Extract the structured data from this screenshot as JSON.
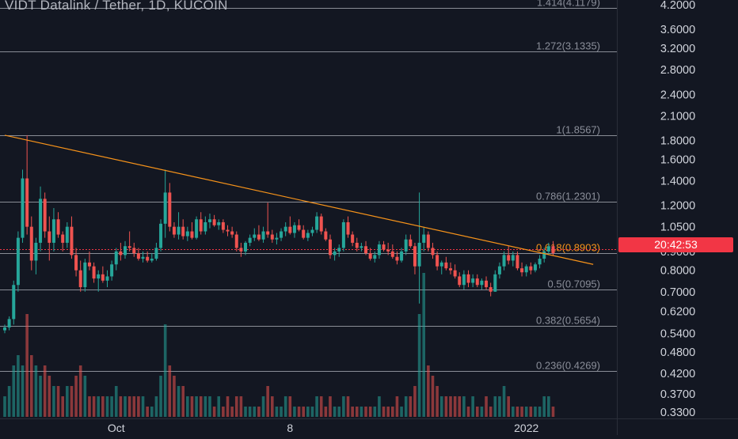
{
  "title": "VIDT Datalink / Tether, 1D, KUCOIN",
  "last_price_label": "20:42:53",
  "colors": {
    "background": "#131722",
    "up": "#26a69a",
    "down": "#ef5350",
    "axis_text": "#d1d4dc",
    "fib_line": "#b2b5be",
    "trendline": "#f7931a",
    "price_tag": "#f23645"
  },
  "chart_data": {
    "type": "candlestick",
    "y_scale": "log",
    "ylim": [
      0.31,
      4.25
    ],
    "grid": false,
    "y_ticks": [
      {
        "value": 4.2,
        "label": "4.2000"
      },
      {
        "value": 3.6,
        "label": "3.6000"
      },
      {
        "value": 3.2,
        "label": "3.2000"
      },
      {
        "value": 2.8,
        "label": "2.8000"
      },
      {
        "value": 2.4,
        "label": "2.4000"
      },
      {
        "value": 2.1,
        "label": "2.1000"
      },
      {
        "value": 1.8,
        "label": "1.8000"
      },
      {
        "value": 1.6,
        "label": "1.6000"
      },
      {
        "value": 1.4,
        "label": "1.4000"
      },
      {
        "value": 1.2,
        "label": "1.2000"
      },
      {
        "value": 1.05,
        "label": "1.0500"
      },
      {
        "value": 0.9,
        "label": "0.9000"
      },
      {
        "value": 0.8,
        "label": "0.8000"
      },
      {
        "value": 0.7,
        "label": "0.7000"
      },
      {
        "value": 0.62,
        "label": "0.6200"
      },
      {
        "value": 0.54,
        "label": "0.5400"
      },
      {
        "value": 0.48,
        "label": "0.4800"
      },
      {
        "value": 0.42,
        "label": "0.4200"
      },
      {
        "value": 0.37,
        "label": "0.3700"
      },
      {
        "value": 0.33,
        "label": "0.3300"
      }
    ],
    "x_ticks": [
      {
        "index": 25,
        "label": "Oct"
      },
      {
        "index": 64,
        "label": "8"
      },
      {
        "index": 117,
        "label": "2022"
      }
    ],
    "fib_levels": [
      {
        "ratio_label": "1.414(4.1179)",
        "value": 4.1179
      },
      {
        "ratio_label": "1.272(3.1335)",
        "value": 3.1335
      },
      {
        "ratio_label": "1(1.8567)",
        "value": 1.8567
      },
      {
        "ratio_label": "0.786(1.2301)",
        "value": 1.2301
      },
      {
        "ratio_label": "0.618(0.8903)",
        "value": 0.8903
      },
      {
        "ratio_label": "0.5(0.7095)",
        "value": 0.7095
      },
      {
        "ratio_label": "0.382(0.5654)",
        "value": 0.5654
      },
      {
        "ratio_label": "0.236(0.4269)",
        "value": 0.4269
      }
    ],
    "trendline": {
      "start": {
        "index": 0,
        "value": 1.86
      },
      "end": {
        "index": 132,
        "value": 0.83
      }
    },
    "last_price": 0.8903,
    "candles": [
      {
        "o": 0.55,
        "h": 0.57,
        "l": 0.54,
        "c": 0.56,
        "v": 0.2
      },
      {
        "o": 0.56,
        "h": 0.6,
        "l": 0.55,
        "c": 0.59,
        "v": 0.3
      },
      {
        "o": 0.59,
        "h": 0.75,
        "l": 0.57,
        "c": 0.73,
        "v": 0.5
      },
      {
        "o": 0.73,
        "h": 1.02,
        "l": 0.7,
        "c": 0.98,
        "v": 0.6
      },
      {
        "o": 0.98,
        "h": 1.5,
        "l": 0.95,
        "c": 1.42,
        "v": 0.5
      },
      {
        "o": 1.42,
        "h": 1.86,
        "l": 1.0,
        "c": 1.05,
        "v": 1.0
      },
      {
        "o": 1.05,
        "h": 1.12,
        "l": 0.8,
        "c": 0.85,
        "v": 0.6
      },
      {
        "o": 0.85,
        "h": 0.98,
        "l": 0.78,
        "c": 0.95,
        "v": 0.5
      },
      {
        "o": 0.95,
        "h": 1.35,
        "l": 0.9,
        "c": 1.25,
        "v": 0.4
      },
      {
        "o": 1.25,
        "h": 1.3,
        "l": 0.98,
        "c": 1.02,
        "v": 0.5
      },
      {
        "o": 1.02,
        "h": 1.12,
        "l": 0.85,
        "c": 0.95,
        "v": 0.4
      },
      {
        "o": 0.95,
        "h": 1.18,
        "l": 0.9,
        "c": 1.1,
        "v": 0.3
      },
      {
        "o": 1.1,
        "h": 1.15,
        "l": 0.98,
        "c": 1.0,
        "v": 0.3
      },
      {
        "o": 1.0,
        "h": 1.02,
        "l": 0.9,
        "c": 0.95,
        "v": 0.2
      },
      {
        "o": 0.95,
        "h": 1.08,
        "l": 0.92,
        "c": 1.05,
        "v": 0.3
      },
      {
        "o": 1.05,
        "h": 1.12,
        "l": 0.86,
        "c": 0.88,
        "v": 0.3
      },
      {
        "o": 0.88,
        "h": 0.92,
        "l": 0.77,
        "c": 0.8,
        "v": 0.4
      },
      {
        "o": 0.8,
        "h": 0.85,
        "l": 0.7,
        "c": 0.72,
        "v": 0.5
      },
      {
        "o": 0.72,
        "h": 0.86,
        "l": 0.7,
        "c": 0.84,
        "v": 0.4
      },
      {
        "o": 0.84,
        "h": 0.9,
        "l": 0.8,
        "c": 0.82,
        "v": 0.2
      },
      {
        "o": 0.82,
        "h": 0.84,
        "l": 0.74,
        "c": 0.76,
        "v": 0.2
      },
      {
        "o": 0.76,
        "h": 0.8,
        "l": 0.7,
        "c": 0.78,
        "v": 0.2
      },
      {
        "o": 0.78,
        "h": 0.82,
        "l": 0.74,
        "c": 0.75,
        "v": 0.2
      },
      {
        "o": 0.75,
        "h": 0.8,
        "l": 0.72,
        "c": 0.77,
        "v": 0.2
      },
      {
        "o": 0.77,
        "h": 0.85,
        "l": 0.75,
        "c": 0.83,
        "v": 0.2
      },
      {
        "o": 0.83,
        "h": 0.92,
        "l": 0.8,
        "c": 0.9,
        "v": 0.3
      },
      {
        "o": 0.9,
        "h": 0.95,
        "l": 0.85,
        "c": 0.88,
        "v": 0.2
      },
      {
        "o": 0.88,
        "h": 0.96,
        "l": 0.86,
        "c": 0.93,
        "v": 0.2
      },
      {
        "o": 0.93,
        "h": 1.02,
        "l": 0.9,
        "c": 0.92,
        "v": 0.2
      },
      {
        "o": 0.92,
        "h": 0.95,
        "l": 0.87,
        "c": 0.89,
        "v": 0.2
      },
      {
        "o": 0.89,
        "h": 0.92,
        "l": 0.85,
        "c": 0.86,
        "v": 0.2
      },
      {
        "o": 0.86,
        "h": 0.9,
        "l": 0.84,
        "c": 0.87,
        "v": 0.2
      },
      {
        "o": 0.87,
        "h": 0.9,
        "l": 0.84,
        "c": 0.85,
        "v": 0.1
      },
      {
        "o": 0.85,
        "h": 0.89,
        "l": 0.84,
        "c": 0.86,
        "v": 0.1
      },
      {
        "o": 0.86,
        "h": 0.95,
        "l": 0.85,
        "c": 0.92,
        "v": 0.2
      },
      {
        "o": 0.92,
        "h": 1.1,
        "l": 0.9,
        "c": 1.07,
        "v": 0.4
      },
      {
        "o": 1.07,
        "h": 1.5,
        "l": 0.98,
        "c": 1.3,
        "v": 0.9
      },
      {
        "o": 1.3,
        "h": 1.38,
        "l": 1.02,
        "c": 1.05,
        "v": 0.5
      },
      {
        "o": 1.05,
        "h": 1.08,
        "l": 0.98,
        "c": 1.0,
        "v": 0.4
      },
      {
        "o": 1.0,
        "h": 1.15,
        "l": 0.97,
        "c": 1.05,
        "v": 0.3
      },
      {
        "o": 1.05,
        "h": 1.1,
        "l": 0.97,
        "c": 0.99,
        "v": 0.3
      },
      {
        "o": 0.99,
        "h": 1.05,
        "l": 0.96,
        "c": 1.02,
        "v": 0.2
      },
      {
        "o": 1.02,
        "h": 1.08,
        "l": 0.97,
        "c": 0.98,
        "v": 0.2
      },
      {
        "o": 0.98,
        "h": 1.12,
        "l": 0.97,
        "c": 1.1,
        "v": 0.2
      },
      {
        "o": 1.1,
        "h": 1.15,
        "l": 1.0,
        "c": 1.02,
        "v": 0.2
      },
      {
        "o": 1.02,
        "h": 1.12,
        "l": 1.0,
        "c": 1.08,
        "v": 0.2
      },
      {
        "o": 1.08,
        "h": 1.14,
        "l": 1.04,
        "c": 1.1,
        "v": 0.2
      },
      {
        "o": 1.1,
        "h": 1.13,
        "l": 1.05,
        "c": 1.06,
        "v": 0.1
      },
      {
        "o": 1.06,
        "h": 1.1,
        "l": 1.03,
        "c": 1.08,
        "v": 0.2
      },
      {
        "o": 1.08,
        "h": 1.1,
        "l": 1.01,
        "c": 1.03,
        "v": 0.1
      },
      {
        "o": 1.03,
        "h": 1.06,
        "l": 0.99,
        "c": 1.02,
        "v": 0.2
      },
      {
        "o": 1.02,
        "h": 1.05,
        "l": 0.98,
        "c": 1.0,
        "v": 0.1
      },
      {
        "o": 1.0,
        "h": 1.02,
        "l": 0.9,
        "c": 0.92,
        "v": 0.2
      },
      {
        "o": 0.92,
        "h": 0.95,
        "l": 0.87,
        "c": 0.9,
        "v": 0.2
      },
      {
        "o": 0.9,
        "h": 0.96,
        "l": 0.88,
        "c": 0.95,
        "v": 0.1
      },
      {
        "o": 0.95,
        "h": 1.0,
        "l": 0.93,
        "c": 0.98,
        "v": 0.1
      },
      {
        "o": 0.98,
        "h": 1.04,
        "l": 0.96,
        "c": 1.0,
        "v": 0.1
      },
      {
        "o": 1.0,
        "h": 1.06,
        "l": 0.96,
        "c": 0.97,
        "v": 0.1
      },
      {
        "o": 0.97,
        "h": 1.05,
        "l": 0.95,
        "c": 1.02,
        "v": 0.2
      },
      {
        "o": 1.02,
        "h": 1.22,
        "l": 0.98,
        "c": 1.0,
        "v": 0.3
      },
      {
        "o": 1.0,
        "h": 1.03,
        "l": 0.95,
        "c": 0.97,
        "v": 0.2
      },
      {
        "o": 0.97,
        "h": 1.01,
        "l": 0.94,
        "c": 0.98,
        "v": 0.1
      },
      {
        "o": 0.98,
        "h": 1.04,
        "l": 0.96,
        "c": 1.02,
        "v": 0.1
      },
      {
        "o": 1.02,
        "h": 1.08,
        "l": 0.99,
        "c": 1.05,
        "v": 0.2
      },
      {
        "o": 1.05,
        "h": 1.12,
        "l": 1.0,
        "c": 1.01,
        "v": 0.2
      },
      {
        "o": 1.01,
        "h": 1.08,
        "l": 0.98,
        "c": 1.06,
        "v": 0.1
      },
      {
        "o": 1.06,
        "h": 1.1,
        "l": 1.02,
        "c": 1.03,
        "v": 0.1
      },
      {
        "o": 1.03,
        "h": 1.06,
        "l": 0.97,
        "c": 0.98,
        "v": 0.1
      },
      {
        "o": 0.98,
        "h": 1.03,
        "l": 0.96,
        "c": 1.01,
        "v": 0.1
      },
      {
        "o": 1.01,
        "h": 1.05,
        "l": 0.99,
        "c": 1.03,
        "v": 0.1
      },
      {
        "o": 1.03,
        "h": 1.15,
        "l": 1.01,
        "c": 1.12,
        "v": 0.2
      },
      {
        "o": 1.12,
        "h": 1.14,
        "l": 1.0,
        "c": 1.02,
        "v": 0.2
      },
      {
        "o": 1.02,
        "h": 1.04,
        "l": 0.96,
        "c": 0.97,
        "v": 0.1
      },
      {
        "o": 0.97,
        "h": 1.0,
        "l": 0.86,
        "c": 0.88,
        "v": 0.2
      },
      {
        "o": 0.88,
        "h": 0.92,
        "l": 0.85,
        "c": 0.9,
        "v": 0.1
      },
      {
        "o": 0.9,
        "h": 0.94,
        "l": 0.87,
        "c": 0.92,
        "v": 0.1
      },
      {
        "o": 0.92,
        "h": 1.1,
        "l": 0.9,
        "c": 1.08,
        "v": 0.2
      },
      {
        "o": 1.08,
        "h": 1.12,
        "l": 0.98,
        "c": 1.0,
        "v": 0.2
      },
      {
        "o": 1.0,
        "h": 1.02,
        "l": 0.93,
        "c": 0.95,
        "v": 0.1
      },
      {
        "o": 0.95,
        "h": 0.98,
        "l": 0.9,
        "c": 0.92,
        "v": 0.1
      },
      {
        "o": 0.92,
        "h": 0.95,
        "l": 0.9,
        "c": 0.93,
        "v": 0.1
      },
      {
        "o": 0.93,
        "h": 0.96,
        "l": 0.88,
        "c": 0.89,
        "v": 0.1
      },
      {
        "o": 0.89,
        "h": 0.92,
        "l": 0.85,
        "c": 0.86,
        "v": 0.1
      },
      {
        "o": 0.86,
        "h": 0.9,
        "l": 0.84,
        "c": 0.88,
        "v": 0.1
      },
      {
        "o": 0.88,
        "h": 0.96,
        "l": 0.86,
        "c": 0.94,
        "v": 0.2
      },
      {
        "o": 0.94,
        "h": 0.96,
        "l": 0.9,
        "c": 0.91,
        "v": 0.1
      },
      {
        "o": 0.91,
        "h": 0.95,
        "l": 0.88,
        "c": 0.9,
        "v": 0.1
      },
      {
        "o": 0.9,
        "h": 0.94,
        "l": 0.86,
        "c": 0.87,
        "v": 0.1
      },
      {
        "o": 0.87,
        "h": 0.9,
        "l": 0.83,
        "c": 0.85,
        "v": 0.2
      },
      {
        "o": 0.85,
        "h": 0.92,
        "l": 0.84,
        "c": 0.9,
        "v": 0.1
      },
      {
        "o": 0.9,
        "h": 1.0,
        "l": 0.88,
        "c": 0.97,
        "v": 0.2
      },
      {
        "o": 0.97,
        "h": 1.0,
        "l": 0.92,
        "c": 0.93,
        "v": 0.2
      },
      {
        "o": 0.93,
        "h": 0.95,
        "l": 0.78,
        "c": 0.82,
        "v": 0.3
      },
      {
        "o": 0.82,
        "h": 1.3,
        "l": 0.65,
        "c": 0.95,
        "v": 1.0
      },
      {
        "o": 0.95,
        "h": 1.05,
        "l": 0.9,
        "c": 1.0,
        "v": 1.4
      },
      {
        "o": 1.0,
        "h": 1.02,
        "l": 0.9,
        "c": 0.92,
        "v": 0.5
      },
      {
        "o": 0.92,
        "h": 0.95,
        "l": 0.86,
        "c": 0.88,
        "v": 0.4
      },
      {
        "o": 0.88,
        "h": 0.9,
        "l": 0.8,
        "c": 0.82,
        "v": 0.3
      },
      {
        "o": 0.82,
        "h": 0.85,
        "l": 0.78,
        "c": 0.84,
        "v": 0.2
      },
      {
        "o": 0.84,
        "h": 0.87,
        "l": 0.8,
        "c": 0.81,
        "v": 0.2
      },
      {
        "o": 0.81,
        "h": 0.84,
        "l": 0.78,
        "c": 0.8,
        "v": 0.2
      },
      {
        "o": 0.8,
        "h": 0.83,
        "l": 0.76,
        "c": 0.77,
        "v": 0.2
      },
      {
        "o": 0.77,
        "h": 0.79,
        "l": 0.72,
        "c": 0.73,
        "v": 0.2
      },
      {
        "o": 0.73,
        "h": 0.8,
        "l": 0.71,
        "c": 0.78,
        "v": 0.2
      },
      {
        "o": 0.78,
        "h": 0.8,
        "l": 0.72,
        "c": 0.74,
        "v": 0.1
      },
      {
        "o": 0.74,
        "h": 0.78,
        "l": 0.72,
        "c": 0.76,
        "v": 0.2
      },
      {
        "o": 0.76,
        "h": 0.78,
        "l": 0.72,
        "c": 0.73,
        "v": 0.1
      },
      {
        "o": 0.73,
        "h": 0.76,
        "l": 0.71,
        "c": 0.75,
        "v": 0.1
      },
      {
        "o": 0.75,
        "h": 0.77,
        "l": 0.71,
        "c": 0.72,
        "v": 0.2
      },
      {
        "o": 0.72,
        "h": 0.74,
        "l": 0.68,
        "c": 0.7,
        "v": 0.1
      },
      {
        "o": 0.7,
        "h": 0.8,
        "l": 0.7,
        "c": 0.78,
        "v": 0.2
      },
      {
        "o": 0.78,
        "h": 0.84,
        "l": 0.76,
        "c": 0.82,
        "v": 0.2
      },
      {
        "o": 0.82,
        "h": 0.9,
        "l": 0.8,
        "c": 0.88,
        "v": 0.3
      },
      {
        "o": 0.88,
        "h": 0.93,
        "l": 0.83,
        "c": 0.85,
        "v": 0.2
      },
      {
        "o": 0.85,
        "h": 0.9,
        "l": 0.82,
        "c": 0.88,
        "v": 0.1
      },
      {
        "o": 0.88,
        "h": 0.9,
        "l": 0.8,
        "c": 0.81,
        "v": 0.1
      },
      {
        "o": 0.81,
        "h": 0.84,
        "l": 0.77,
        "c": 0.79,
        "v": 0.1
      },
      {
        "o": 0.79,
        "h": 0.83,
        "l": 0.77,
        "c": 0.82,
        "v": 0.1
      },
      {
        "o": 0.82,
        "h": 0.84,
        "l": 0.78,
        "c": 0.8,
        "v": 0.1
      },
      {
        "o": 0.8,
        "h": 0.84,
        "l": 0.79,
        "c": 0.83,
        "v": 0.1
      },
      {
        "o": 0.83,
        "h": 0.88,
        "l": 0.81,
        "c": 0.86,
        "v": 0.1
      },
      {
        "o": 0.86,
        "h": 0.92,
        "l": 0.84,
        "c": 0.9,
        "v": 0.2
      },
      {
        "o": 0.9,
        "h": 0.95,
        "l": 0.88,
        "c": 0.93,
        "v": 0.2
      },
      {
        "o": 0.93,
        "h": 0.96,
        "l": 0.88,
        "c": 0.89,
        "v": 0.1
      }
    ]
  }
}
